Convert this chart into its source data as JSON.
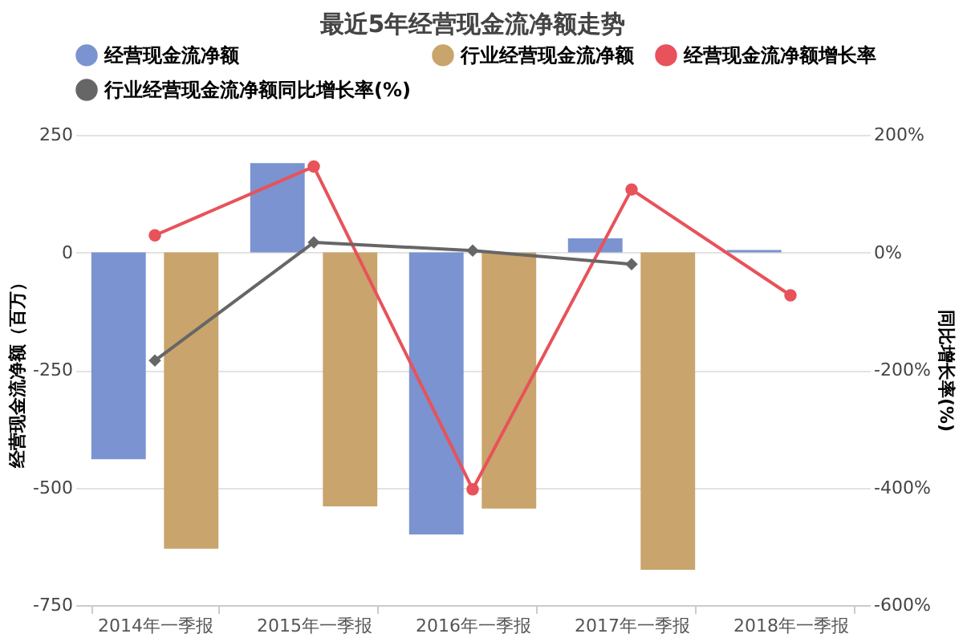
{
  "chart_data": {
    "type": "bar",
    "title": "最近5年经营现金流净额走势",
    "categories": [
      "2014年一季报",
      "2015年一季报",
      "2016年一季报",
      "2017年一季报",
      "2018年一季报"
    ],
    "series": [
      {
        "name": "经营现金流净额",
        "color": "#7b93d0",
        "values": [
          -440,
          190,
          -600,
          30,
          5
        ]
      },
      {
        "name": "行业经营现金流净额",
        "color": "#c9a46c",
        "values": [
          -630,
          -540,
          -545,
          -675,
          null
        ]
      },
      {
        "name": "经营现金流净额增长率",
        "type": "line",
        "axis": "y2",
        "marker": "circle",
        "color": "#e8525a",
        "values": [
          29,
          146,
          -403,
          107,
          -73
        ]
      },
      {
        "name": "行业经营现金流净额同比增长率(%)",
        "type": "line",
        "axis": "y2",
        "marker": "diamond",
        "color": "#666666",
        "values": [
          -184,
          17,
          3,
          -20,
          null
        ]
      }
    ],
    "ylabel": "经营现金流净额（百万）",
    "y2label": "同比增长率(%)",
    "ylim": [
      -750,
      250
    ],
    "yticks": [
      -750,
      -500,
      -250,
      0,
      250
    ],
    "y2lim": [
      -600,
      200
    ],
    "y2ticks": [
      {
        "value": -600,
        "label": "-600%"
      },
      {
        "value": -400,
        "label": "-400%"
      },
      {
        "value": -200,
        "label": "-200%"
      },
      {
        "value": 0,
        "label": "0%"
      },
      {
        "value": 200,
        "label": "200%"
      }
    ],
    "grid": "y",
    "legend": "top left",
    "line_style": "solid"
  }
}
